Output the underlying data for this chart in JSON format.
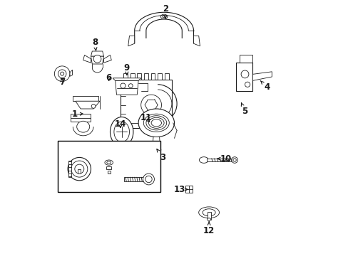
{
  "background_color": "#ffffff",
  "fig_width": 4.89,
  "fig_height": 3.6,
  "dpi": 100,
  "line_color": "#1a1a1a",
  "text_color": "#1a1a1a",
  "label_fontsize": 8.5,
  "label_positions": {
    "1": [
      0.112,
      0.555,
      0.155,
      0.555
    ],
    "2": [
      0.465,
      0.965,
      0.465,
      0.925
    ],
    "3": [
      0.455,
      0.385,
      0.43,
      0.42
    ],
    "4": [
      0.86,
      0.66,
      0.835,
      0.685
    ],
    "5": [
      0.775,
      0.565,
      0.76,
      0.6
    ],
    "6": [
      0.245,
      0.695,
      0.245,
      0.675
    ],
    "7": [
      0.062,
      0.68,
      0.062,
      0.695
    ],
    "8": [
      0.19,
      0.835,
      0.195,
      0.8
    ],
    "9": [
      0.315,
      0.735,
      0.315,
      0.705
    ],
    "10": [
      0.7,
      0.38,
      0.665,
      0.38
    ],
    "11": [
      0.39,
      0.54,
      0.41,
      0.515
    ],
    "12": [
      0.635,
      0.1,
      0.635,
      0.135
    ],
    "13": [
      0.52,
      0.26,
      0.555,
      0.26
    ],
    "14": [
      0.29,
      0.515,
      0.29,
      0.49
    ]
  }
}
